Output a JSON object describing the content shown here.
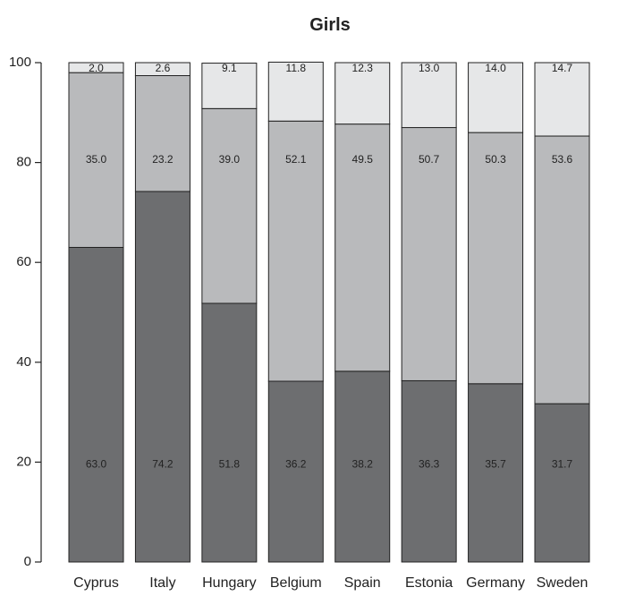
{
  "chart_data": {
    "type": "bar",
    "stacked": true,
    "title": "Girls",
    "xlabel": "",
    "ylabel": "",
    "ylim": [
      0,
      100
    ],
    "yticks": [
      0,
      20,
      40,
      60,
      80,
      100
    ],
    "grid": false,
    "legend": "none",
    "categories": [
      "Cyprus",
      "Italy",
      "Hungary",
      "Belgium",
      "Spain",
      "Estonia",
      "Germany",
      "Sweden"
    ],
    "series": [
      {
        "values": [
          63.0,
          74.2,
          51.8,
          36.2,
          38.2,
          36.3,
          35.7,
          31.7
        ],
        "labels": [
          "63.0",
          "74.2",
          "51.8",
          "36.2",
          "38.2",
          "36.3",
          "35.7",
          "31.7"
        ],
        "color": "#6d6e70"
      },
      {
        "values": [
          35.0,
          23.2,
          39.0,
          52.1,
          49.5,
          50.7,
          50.3,
          53.6
        ],
        "labels": [
          "35.0",
          "23.2",
          "39.0",
          "52.1",
          "49.5",
          "50.7",
          "50.3",
          "53.6"
        ],
        "color": "#b9babc"
      },
      {
        "values": [
          2.0,
          2.6,
          9.1,
          11.8,
          12.3,
          13.0,
          14.0,
          14.7
        ],
        "labels": [
          "2.0",
          "2.6",
          "9.1",
          "11.8",
          "12.3",
          "13.0",
          "14.0",
          "14.7"
        ],
        "color": "#e6e7e8"
      }
    ]
  }
}
